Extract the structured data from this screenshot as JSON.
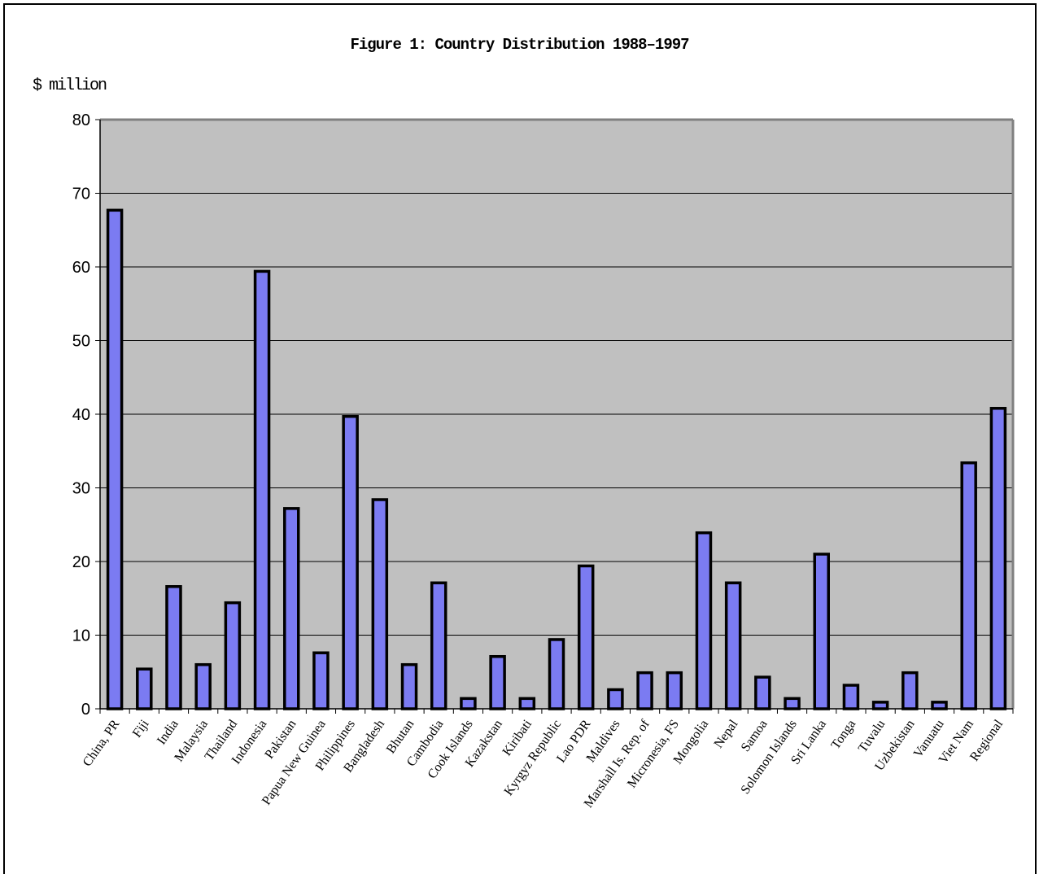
{
  "chart_data": {
    "type": "bar",
    "title": "Figure 1: Country Distribution 1988–1997",
    "ylabel": "$ million",
    "xlabel": "",
    "ylim": [
      0,
      80
    ],
    "yticks": [
      0,
      10,
      20,
      30,
      40,
      50,
      60,
      70,
      80
    ],
    "grid": true,
    "legend": "none",
    "categories": [
      "China, PR",
      "Fiji",
      "India",
      "Malaysia",
      "Thailand",
      "Indonesia",
      "Pakistan",
      "Papua New Guinea",
      "Philippines",
      "Bangladesh",
      "Bhutan",
      "Cambodia",
      "Cook Islands",
      "Kazakstan",
      "Kiribati",
      "Kyrgyz Republic",
      "Lao PDR",
      "Maldives",
      "Marshall Is. Rep. of",
      "Micronesia, FS",
      "Mongolia",
      "Nepal",
      "Samoa",
      "Solomon Islands",
      "Sri Lanka",
      "Tonga",
      "Tuvalu",
      "Uzbekistan",
      "Vanuatu",
      "Viet Nam",
      "Regional"
    ],
    "values": [
      67.7,
      5.4,
      16.6,
      6.0,
      14.4,
      59.4,
      27.2,
      7.6,
      39.7,
      28.4,
      6.0,
      17.1,
      1.4,
      7.1,
      1.4,
      9.4,
      19.4,
      2.6,
      4.9,
      4.9,
      23.9,
      17.1,
      4.3,
      1.4,
      21.0,
      3.2,
      0.9,
      4.9,
      0.9,
      33.4,
      40.8
    ],
    "colors": {
      "bar_fill": "#7b7bf2",
      "bar_stroke": "#000000",
      "plot_background": "#c0c0c0",
      "gridline": "#000000",
      "plot_border": "#808080"
    }
  }
}
